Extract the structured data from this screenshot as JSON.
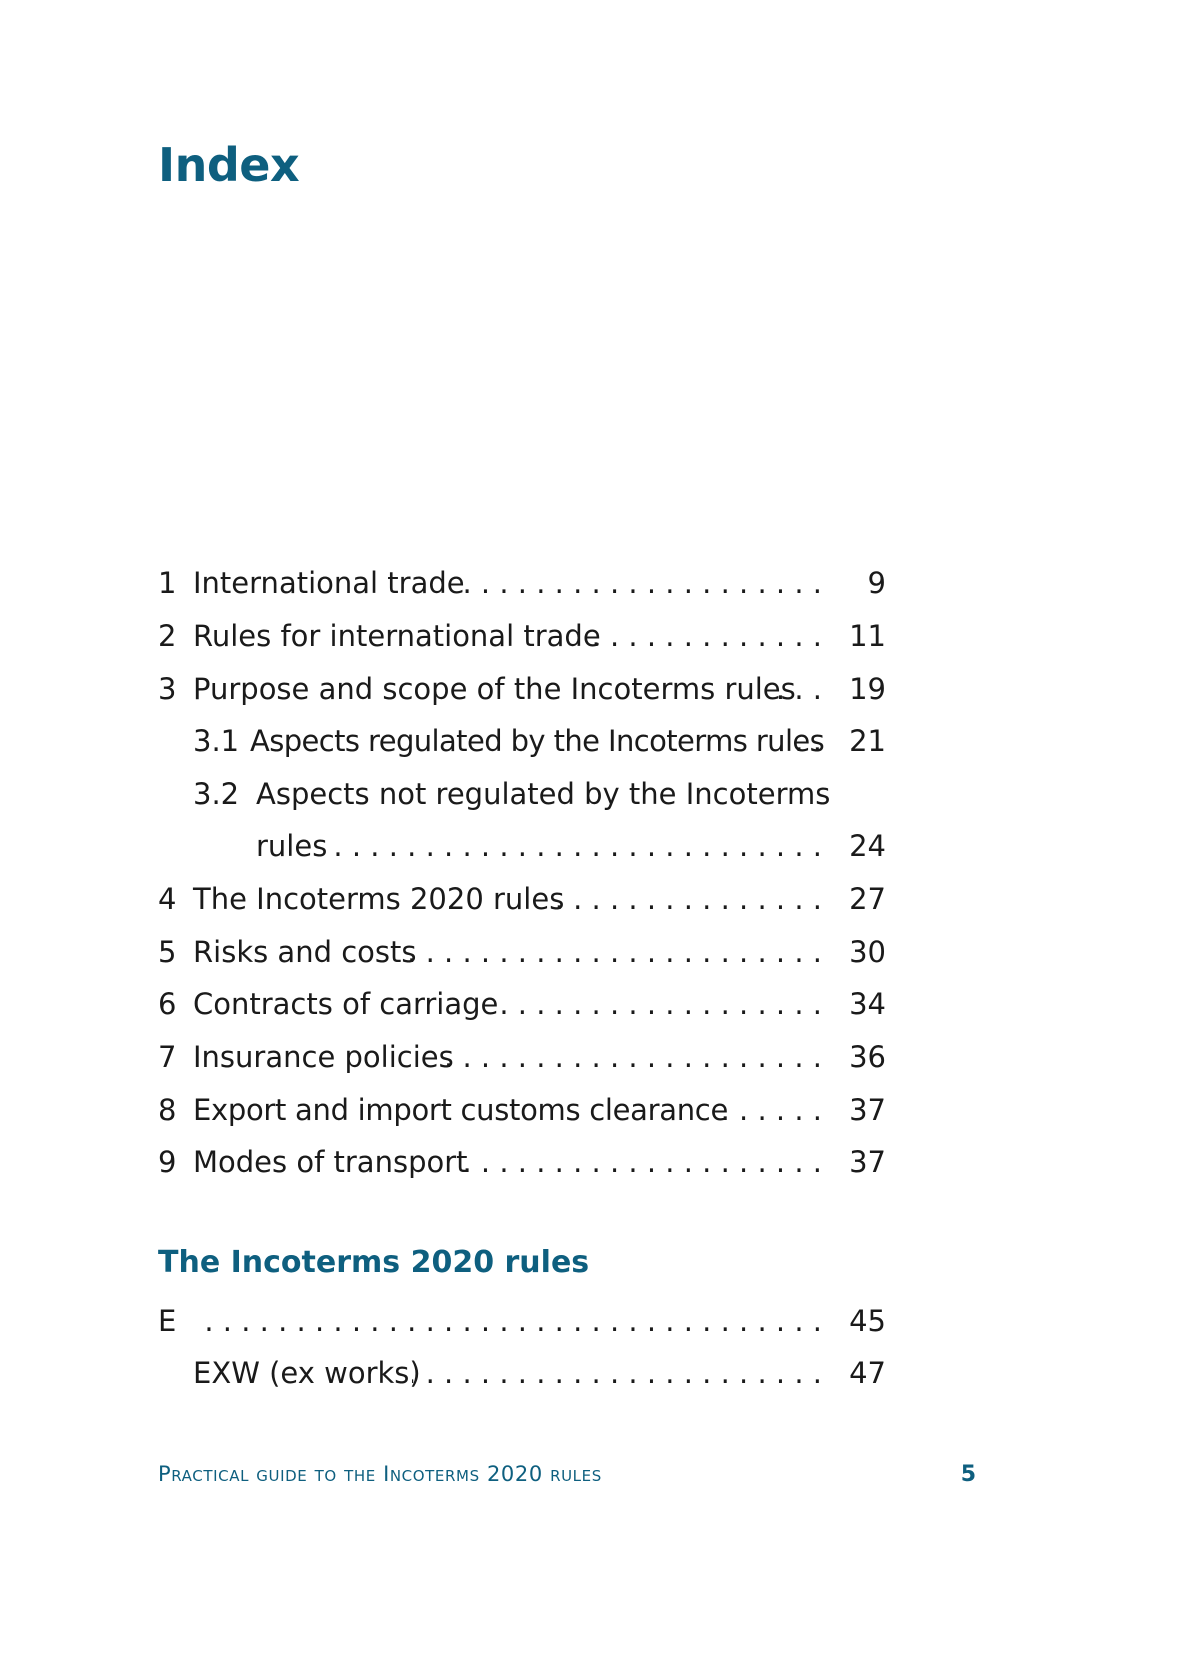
{
  "page": {
    "title": "Index"
  },
  "toc": {
    "entries": [
      {
        "num": "1",
        "label": "International trade",
        "page": "9"
      },
      {
        "num": "2",
        "label": "Rules for international trade",
        "page": "11"
      },
      {
        "num": "3",
        "label": "Purpose and scope of the Incoterms rules",
        "page": "19"
      },
      {
        "num": "3.1",
        "label": "Aspects regulated by the Incoterms rules",
        "page": "21"
      },
      {
        "num": "3.2",
        "label": "Aspects not regulated by the Incoterms",
        "label_cont": "rules",
        "page": "24"
      },
      {
        "num": "4",
        "label": "The Incoterms 2020 rules",
        "page": "27"
      },
      {
        "num": "5",
        "label": "Risks and costs",
        "page": "30"
      },
      {
        "num": "6",
        "label": "Contracts of carriage",
        "page": "34"
      },
      {
        "num": "7",
        "label": "Insurance policies",
        "page": "36"
      },
      {
        "num": "8",
        "label": "Export and import customs clearance",
        "page": "37"
      },
      {
        "num": "9",
        "label": "Modes of transport",
        "page": "37"
      }
    ]
  },
  "rules_section": {
    "heading": "The Incoterms 2020 rules",
    "entries": [
      {
        "num": "E",
        "page": "45"
      },
      {
        "label": "EXW (ex works)",
        "page": "47"
      }
    ]
  },
  "footer": {
    "title": "Practical guide to the Incoterms 2020 rules",
    "page_number": "5"
  },
  "colors": {
    "accent": "#0e5f7f",
    "text": "#1a1a1a"
  }
}
